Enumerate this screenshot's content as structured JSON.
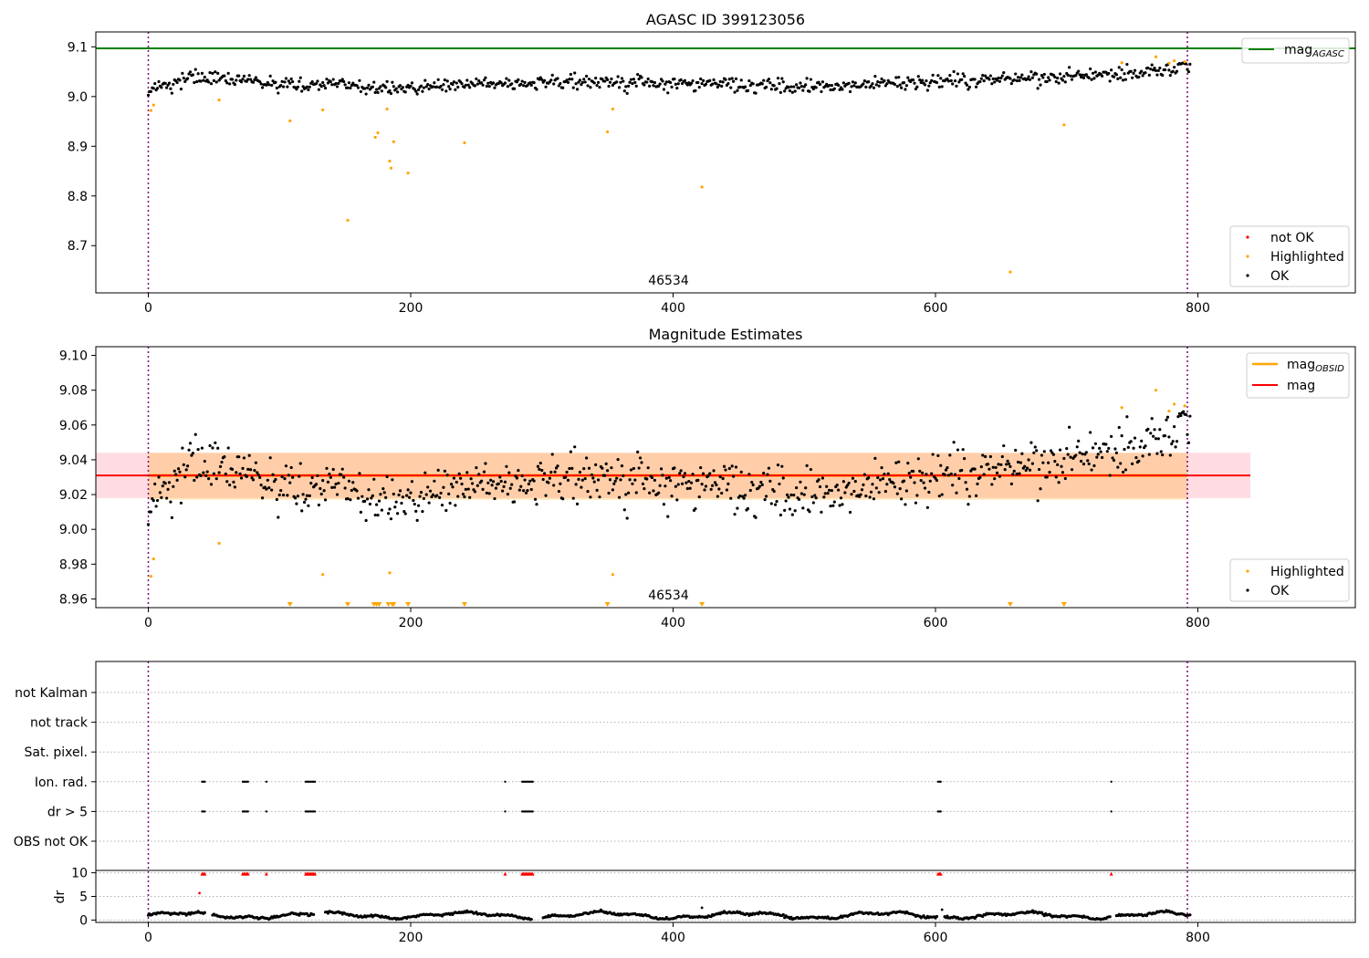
{
  "chart_data": [
    {
      "type": "scatter",
      "title": "AGASC ID 399123056",
      "obsid_label": "46534",
      "xlim": [
        -40,
        920
      ],
      "ylim": [
        8.605,
        9.13
      ],
      "x_ticks": [
        0,
        200,
        400,
        600,
        800
      ],
      "y_ticks": [
        8.7,
        8.8,
        8.9,
        9.0,
        9.1
      ],
      "y_tick_labels": [
        "8.7",
        "8.8",
        "8.9",
        "9.0",
        "9.1"
      ],
      "n_points": 795,
      "ok_trend": {
        "x": [
          0,
          30,
          120,
          130,
          180,
          300,
          420,
          500,
          600,
          700,
          760,
          794
        ],
        "y": [
          9.01,
          9.04,
          9.02,
          9.03,
          9.015,
          9.03,
          9.025,
          9.02,
          9.03,
          9.04,
          9.05,
          9.06
        ],
        "scatter": 0.007
      },
      "highlighted": {
        "x": [
          2,
          4,
          54,
          108,
          133,
          152,
          173,
          175,
          182,
          184,
          185,
          187,
          198,
          241,
          350,
          354,
          422,
          657,
          698,
          742,
          768,
          778,
          782,
          790
        ],
        "y": [
          8.972,
          8.983,
          8.993,
          8.951,
          8.973,
          8.751,
          8.918,
          8.927,
          8.975,
          8.87,
          8.856,
          8.909,
          8.846,
          8.907,
          8.929,
          8.975,
          8.818,
          8.647,
          8.943,
          9.068,
          9.08,
          9.067,
          9.072,
          9.07
        ]
      },
      "mag_agasc": 9.097,
      "vlines": [
        0,
        792
      ],
      "legend_top": {
        "entries": [
          {
            "label": "mag",
            "sub": "AGASC",
            "color": "#008000"
          }
        ],
        "placement": "upper right"
      },
      "legend_bottom": {
        "entries": [
          {
            "label": "not OK",
            "color": "#ff0000"
          },
          {
            "label": "Highlighted",
            "color": "#ffa500"
          },
          {
            "label": "OK",
            "color": "#000000"
          }
        ],
        "placement": "lower right"
      }
    },
    {
      "type": "scatter",
      "title": "Magnitude Estimates",
      "obsid_label": "46534",
      "xlim": [
        -40,
        920
      ],
      "ylim": [
        8.955,
        9.105
      ],
      "x_ticks": [
        0,
        200,
        400,
        600,
        800
      ],
      "y_ticks": [
        8.96,
        8.98,
        9.0,
        9.02,
        9.04,
        9.06,
        9.08,
        9.1
      ],
      "y_tick_labels": [
        "8.96",
        "8.98",
        "9.00",
        "9.02",
        "9.04",
        "9.06",
        "9.08",
        "9.10"
      ],
      "mag": 9.031,
      "mag_band": [
        9.018,
        9.044
      ],
      "mag_obsid": 9.031,
      "obsid_band": [
        9.017,
        9.044
      ],
      "highlighted": {
        "x": [
          2,
          4,
          54,
          133,
          184,
          354,
          742,
          768,
          778,
          782,
          790
        ],
        "y": [
          8.973,
          8.983,
          8.992,
          8.974,
          8.975,
          8.974,
          9.07,
          9.08,
          9.068,
          9.072,
          9.071
        ]
      },
      "clipped_low_x": [
        108,
        152,
        172,
        174,
        176,
        183,
        186,
        187,
        198,
        241,
        350,
        422,
        657,
        698
      ],
      "legend_top": {
        "entries": [
          {
            "label": "mag",
            "sub": "OBSID",
            "color": "#ffa500"
          },
          {
            "label": "mag",
            "sub": "",
            "color": "#ff0000"
          }
        ],
        "placement": "upper right"
      },
      "legend_bottom": {
        "entries": [
          {
            "label": "Highlighted",
            "color": "#ffa500"
          },
          {
            "label": "OK",
            "color": "#000000"
          }
        ],
        "placement": "lower right"
      }
    },
    {
      "type": "scatter",
      "rows": [
        "not Kalman",
        "not track",
        "Sat. pixel.",
        "Ion. rad.",
        "dr > 5",
        "OBS not OK"
      ],
      "flag_x": [
        41,
        42,
        43,
        72,
        73,
        74,
        75,
        76,
        90,
        120,
        121,
        122,
        123,
        124,
        125,
        126,
        127,
        272,
        285,
        286,
        287,
        288,
        289,
        290,
        291,
        292,
        293,
        602,
        603,
        604,
        734
      ],
      "flag_rows": [
        "Ion. rad.",
        "dr > 5"
      ],
      "dr_ylabel": "dr",
      "dr_ticks": [
        0,
        5,
        10
      ],
      "dr_ylim": [
        -0.5,
        10.5
      ],
      "dr_outliers": {
        "x": [
          39,
          422,
          605
        ],
        "y": [
          5.7,
          2.6,
          2.2
        ]
      },
      "x_ticks": [
        0,
        200,
        400,
        600,
        800
      ]
    }
  ]
}
